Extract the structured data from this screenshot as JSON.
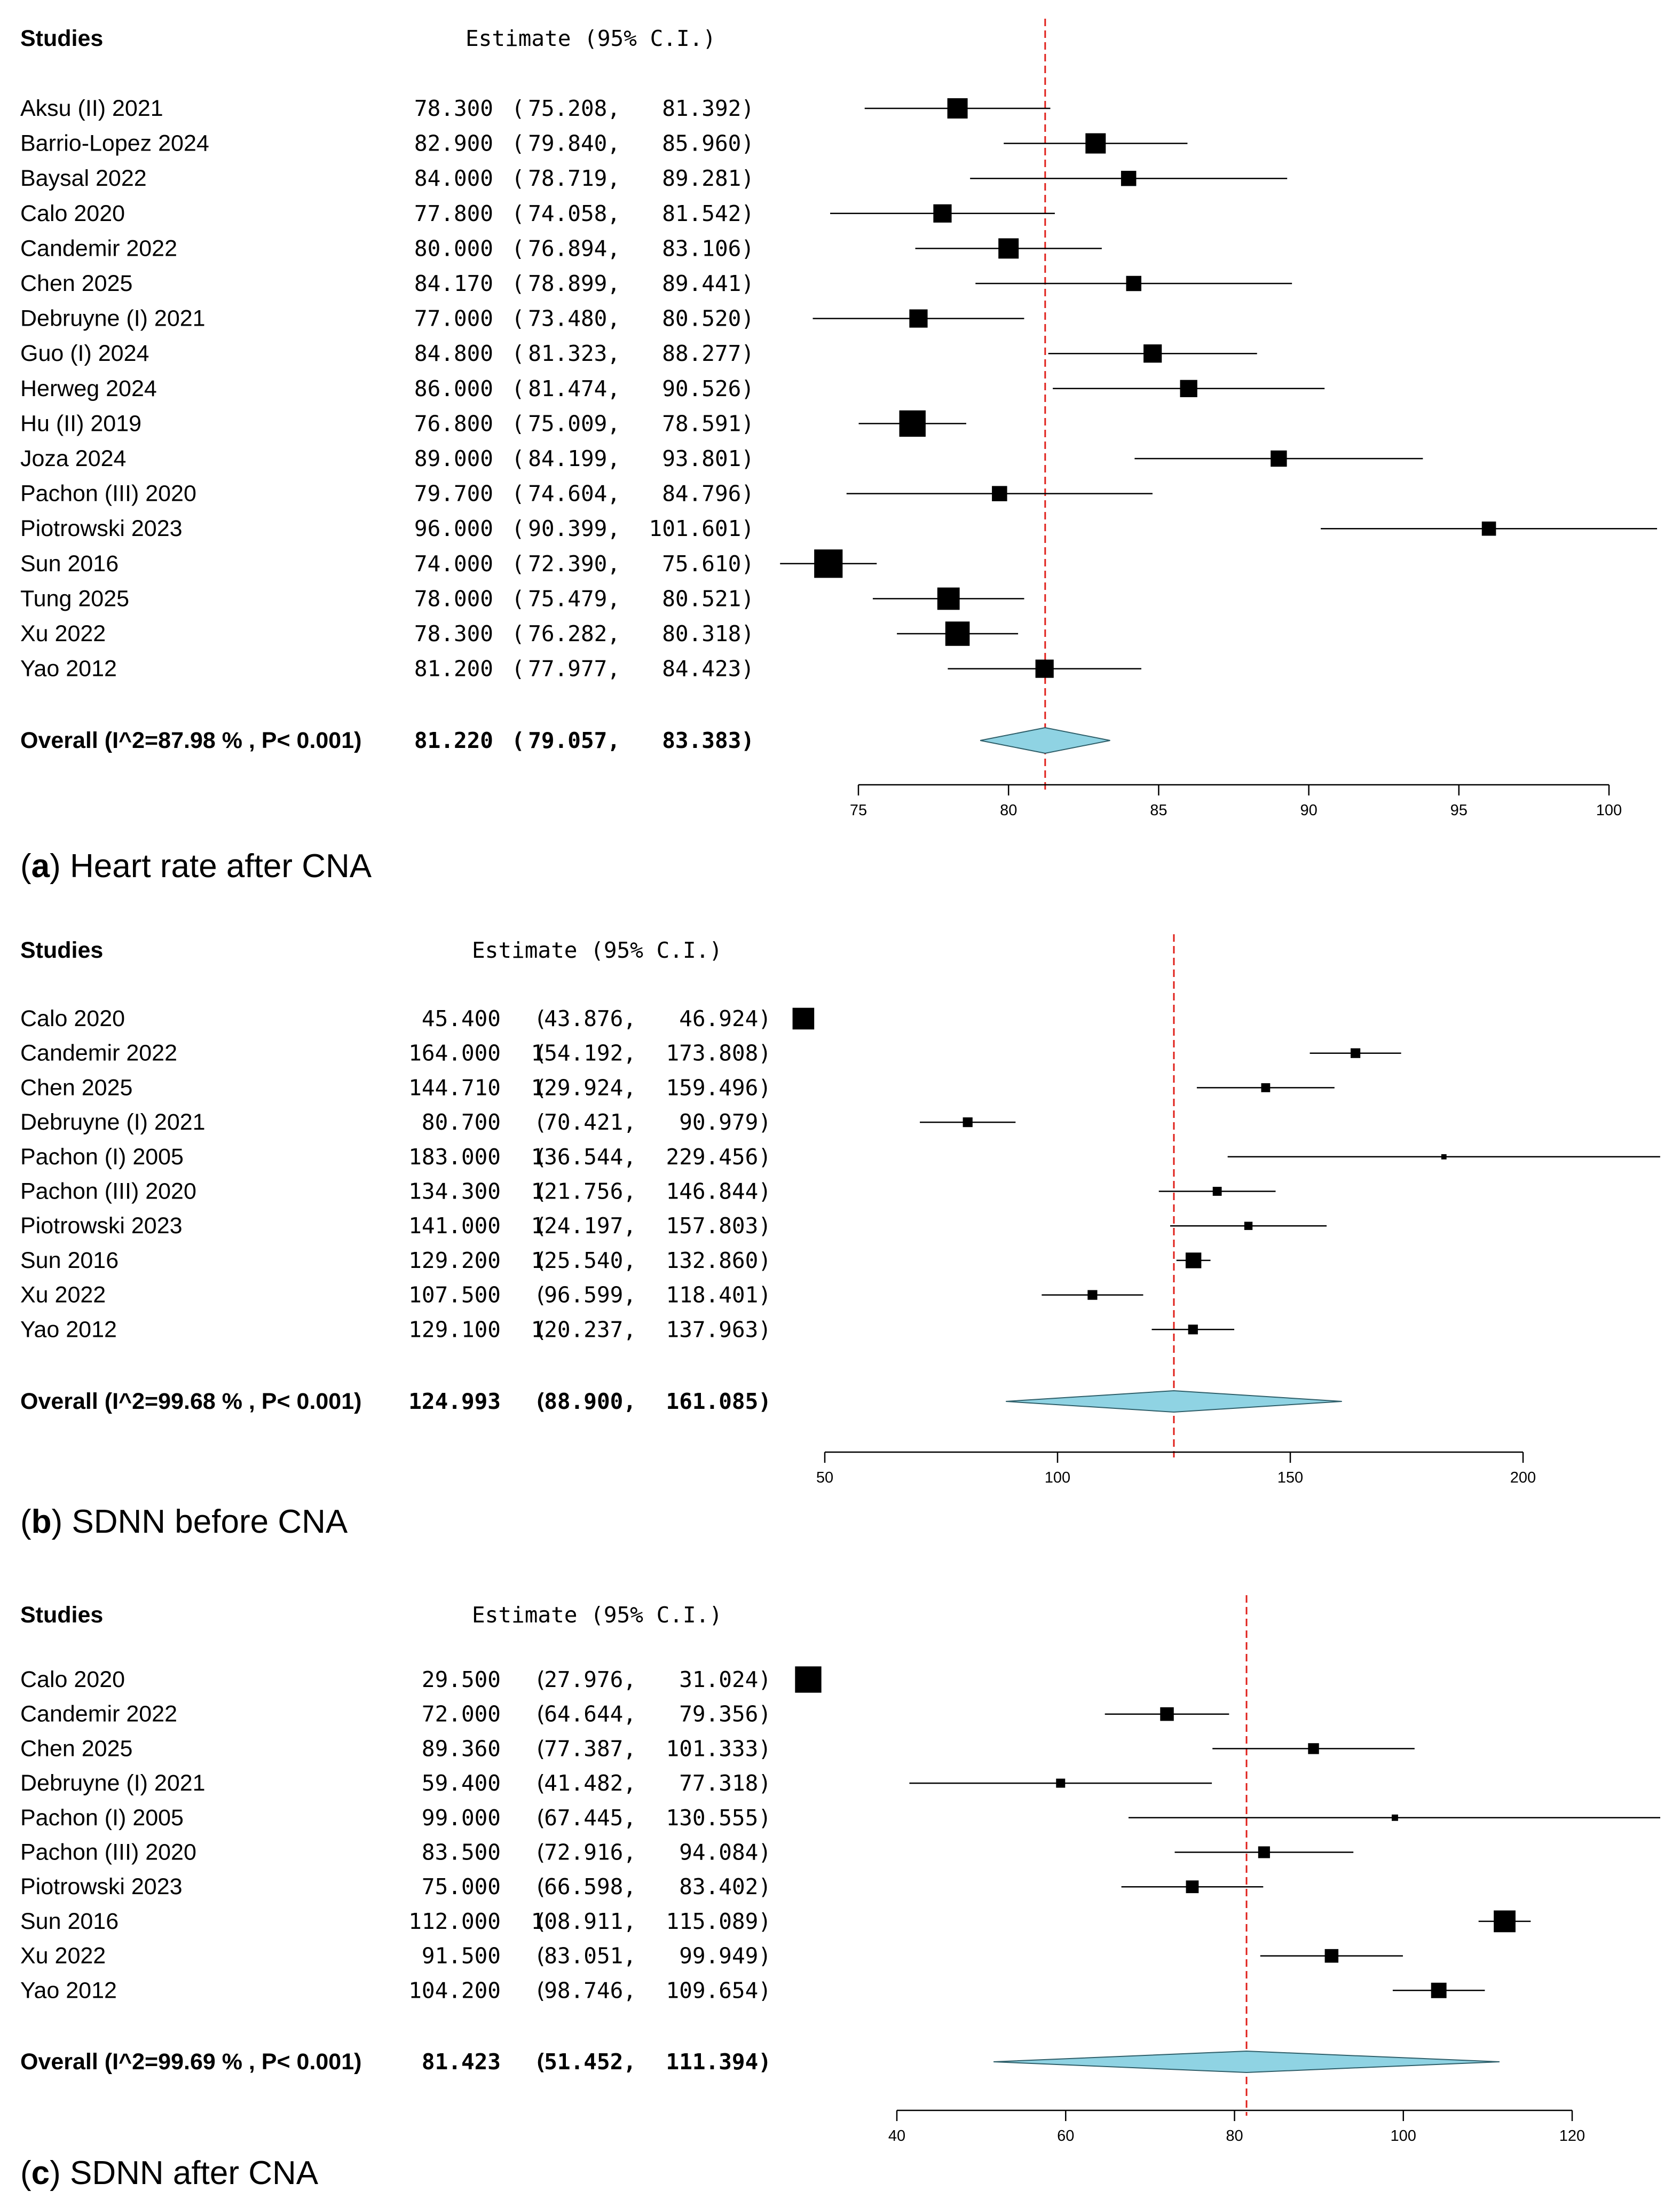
{
  "chart_data": [
    {
      "type": "forest",
      "panel": "(a)",
      "panel_letter": "a",
      "caption_text": " Heart rate after CNA",
      "studies_header": "Studies",
      "estimate_header": "Estimate (95% C.I.)",
      "studies": [
        {
          "name": "Aksu (II) 2021",
          "est": "78.300",
          "lo": "75.208",
          "hi": "81.392",
          "value": 78.3,
          "lower": 75.208,
          "upper": 81.392,
          "w": 1.0
        },
        {
          "name": "Barrio-Lopez 2024",
          "est": "82.900",
          "lo": "79.840",
          "hi": "85.960",
          "value": 82.9,
          "lower": 79.84,
          "upper": 85.96,
          "w": 1.0
        },
        {
          "name": "Baysal 2022",
          "est": "84.000",
          "lo": "78.719",
          "hi": "89.281",
          "value": 84.0,
          "lower": 78.719,
          "upper": 89.281,
          "w": 0.75
        },
        {
          "name": "Calo 2020",
          "est": "77.800",
          "lo": "74.058",
          "hi": "81.542",
          "value": 77.8,
          "lower": 74.058,
          "upper": 81.542,
          "w": 0.9
        },
        {
          "name": "Candemir 2022",
          "est": "80.000",
          "lo": "76.894",
          "hi": "83.106",
          "value": 80.0,
          "lower": 76.894,
          "upper": 83.106,
          "w": 1.0
        },
        {
          "name": "Chen 2025",
          "est": "84.170",
          "lo": "78.899",
          "hi": "89.441",
          "value": 84.17,
          "lower": 78.899,
          "upper": 89.441,
          "w": 0.75
        },
        {
          "name": "Debruyne (I) 2021",
          "est": "77.000",
          "lo": "73.480",
          "hi": "80.520",
          "value": 77.0,
          "lower": 73.48,
          "upper": 80.52,
          "w": 0.9
        },
        {
          "name": "Guo (I) 2024",
          "est": "84.800",
          "lo": "81.323",
          "hi": "88.277",
          "value": 84.8,
          "lower": 81.323,
          "upper": 88.277,
          "w": 0.9
        },
        {
          "name": "Herweg 2024",
          "est": "86.000",
          "lo": "81.474",
          "hi": "90.526",
          "value": 86.0,
          "lower": 81.474,
          "upper": 90.526,
          "w": 0.85
        },
        {
          "name": "Hu (II) 2019",
          "est": "76.800",
          "lo": "75.009",
          "hi": "78.591",
          "value": 76.8,
          "lower": 75.009,
          "upper": 78.591,
          "w": 1.3
        },
        {
          "name": "Joza 2024",
          "est": "89.000",
          "lo": "84.199",
          "hi": "93.801",
          "value": 89.0,
          "lower": 84.199,
          "upper": 93.801,
          "w": 0.8
        },
        {
          "name": "Pachon (III) 2020",
          "est": "79.700",
          "lo": "74.604",
          "hi": "84.796",
          "value": 79.7,
          "lower": 74.604,
          "upper": 84.796,
          "w": 0.75
        },
        {
          "name": "Piotrowski 2023",
          "est": "96.000",
          "lo": "90.399",
          "hi": "101.601",
          "value": 96.0,
          "lower": 90.399,
          "upper": 101.601,
          "w": 0.7
        },
        {
          "name": "Sun 2016",
          "est": "74.000",
          "lo": "72.390",
          "hi": "75.610",
          "value": 74.0,
          "lower": 72.39,
          "upper": 75.61,
          "w": 1.4
        },
        {
          "name": "Tung 2025",
          "est": "78.000",
          "lo": "75.479",
          "hi": "80.521",
          "value": 78.0,
          "lower": 75.479,
          "upper": 80.521,
          "w": 1.1
        },
        {
          "name": "Xu 2022",
          "est": "78.300",
          "lo": "76.282",
          "hi": "80.318",
          "value": 78.3,
          "lower": 76.282,
          "upper": 80.318,
          "w": 1.2
        },
        {
          "name": "Yao 2012",
          "est": "81.200",
          "lo": "77.977",
          "hi": "84.423",
          "value": 81.2,
          "lower": 77.977,
          "upper": 84.423,
          "w": 0.9
        }
      ],
      "overall": {
        "label": "Overall (I^2=87.98 % , P< 0.001)",
        "est": "81.220",
        "lo": "79.057",
        "hi": "83.383",
        "value": 81.22,
        "lower": 79.057,
        "upper": 83.383
      },
      "xlim": [
        75,
        100
      ],
      "ticks": [
        75,
        80,
        85,
        90,
        95,
        100
      ]
    },
    {
      "type": "forest",
      "panel": "(b)",
      "panel_letter": "b",
      "caption_text": " SDNN before CNA",
      "studies_header": "Studies",
      "estimate_header": "Estimate (95% C.I.)",
      "studies": [
        {
          "name": "Calo 2020",
          "est": "45.400",
          "lo": "43.876",
          "hi": "46.924",
          "value": 45.4,
          "lower": 43.876,
          "upper": 46.924,
          "w": 1.45
        },
        {
          "name": "Candemir 2022",
          "est": "164.000",
          "lo": "154.192",
          "hi": "173.808",
          "value": 164.0,
          "lower": 154.192,
          "upper": 173.808,
          "w": 0.65
        },
        {
          "name": "Chen 2025",
          "est": "144.710",
          "lo": "129.924",
          "hi": "159.496",
          "value": 144.71,
          "lower": 129.924,
          "upper": 159.496,
          "w": 0.6
        },
        {
          "name": "Debruyne (I) 2021",
          "est": "80.700",
          "lo": "70.421",
          "hi": "90.979",
          "value": 80.7,
          "lower": 70.421,
          "upper": 90.979,
          "w": 0.65
        },
        {
          "name": "Pachon (I) 2005",
          "est": "183.000",
          "lo": "136.544",
          "hi": "229.456",
          "value": 183.0,
          "lower": 136.544,
          "upper": 229.456,
          "w": 0.35
        },
        {
          "name": "Pachon (III) 2020",
          "est": "134.300",
          "lo": "121.756",
          "hi": "146.844",
          "value": 134.3,
          "lower": 121.756,
          "upper": 146.844,
          "w": 0.6
        },
        {
          "name": "Piotrowski 2023",
          "est": "141.000",
          "lo": "124.197",
          "hi": "157.803",
          "value": 141.0,
          "lower": 124.197,
          "upper": 157.803,
          "w": 0.55
        },
        {
          "name": "Sun 2016",
          "est": "129.200",
          "lo": "125.540",
          "hi": "132.860",
          "value": 129.2,
          "lower": 125.54,
          "upper": 132.86,
          "w": 1.05
        },
        {
          "name": "Xu 2022",
          "est": "107.500",
          "lo": "96.599",
          "hi": "118.401",
          "value": 107.5,
          "lower": 96.599,
          "upper": 118.401,
          "w": 0.65
        },
        {
          "name": "Yao 2012",
          "est": "129.100",
          "lo": "120.237",
          "hi": "137.963",
          "value": 129.1,
          "lower": 120.237,
          "upper": 137.963,
          "w": 0.65
        }
      ],
      "overall": {
        "label": "Overall (I^2=99.68 % , P< 0.001)",
        "est": "124.993",
        "lo": "88.900",
        "hi": "161.085",
        "value": 124.993,
        "lower": 88.9,
        "upper": 161.085
      },
      "xlim": [
        50,
        200
      ],
      "ticks": [
        50,
        100,
        150,
        200
      ]
    },
    {
      "type": "forest",
      "panel": "(c)",
      "panel_letter": "c",
      "caption_text": " SDNN after CNA",
      "studies_header": "Studies",
      "estimate_header": "Estimate (95% C.I.)",
      "studies": [
        {
          "name": "Calo 2020",
          "est": "29.500",
          "lo": "27.976",
          "hi": "31.024",
          "value": 29.5,
          "lower": 27.976,
          "upper": 31.024,
          "w": 1.45
        },
        {
          "name": "Candemir 2022",
          "est": "72.000",
          "lo": "64.644",
          "hi": "79.356",
          "value": 72.0,
          "lower": 64.644,
          "upper": 79.356,
          "w": 0.75
        },
        {
          "name": "Chen 2025",
          "est": "89.360",
          "lo": "77.387",
          "hi": "101.333",
          "value": 89.36,
          "lower": 77.387,
          "upper": 101.333,
          "w": 0.6
        },
        {
          "name": "Debruyne (I) 2021",
          "est": "59.400",
          "lo": "41.482",
          "hi": "77.318",
          "value": 59.4,
          "lower": 41.482,
          "upper": 77.318,
          "w": 0.5
        },
        {
          "name": "Pachon (I) 2005",
          "est": "99.000",
          "lo": "67.445",
          "hi": "130.555",
          "value": 99.0,
          "lower": 67.445,
          "upper": 130.555,
          "w": 0.35
        },
        {
          "name": "Pachon (III) 2020",
          "est": "83.500",
          "lo": "72.916",
          "hi": "94.084",
          "value": 83.5,
          "lower": 72.916,
          "upper": 94.084,
          "w": 0.65
        },
        {
          "name": "Piotrowski 2023",
          "est": "75.000",
          "lo": "66.598",
          "hi": "83.402",
          "value": 75.0,
          "lower": 66.598,
          "upper": 83.402,
          "w": 0.7
        },
        {
          "name": "Sun 2016",
          "est": "112.000",
          "lo": "108.911",
          "hi": "115.089",
          "value": 112.0,
          "lower": 108.911,
          "upper": 115.089,
          "w": 1.2
        },
        {
          "name": "Xu 2022",
          "est": "91.500",
          "lo": "83.051",
          "hi": "99.949",
          "value": 91.5,
          "lower": 83.051,
          "upper": 99.949,
          "w": 0.75
        },
        {
          "name": "Yao 2012",
          "est": "104.200",
          "lo": "98.746",
          "hi": "109.654",
          "value": 104.2,
          "lower": 98.746,
          "upper": 109.654,
          "w": 0.85
        }
      ],
      "overall": {
        "label": "Overall (I^2=99.69 % , P< 0.001)",
        "est": "81.423",
        "lo": "51.452",
        "hi": "111.394",
        "value": 81.423,
        "lower": 51.452,
        "upper": 111.394
      },
      "xlim": [
        40,
        120
      ],
      "ticks": [
        40,
        60,
        80,
        100,
        120
      ]
    }
  ],
  "colors": {
    "reference_line": "#e0201b",
    "diamond_fill": "#8fd3e3",
    "marker": "#000000"
  }
}
